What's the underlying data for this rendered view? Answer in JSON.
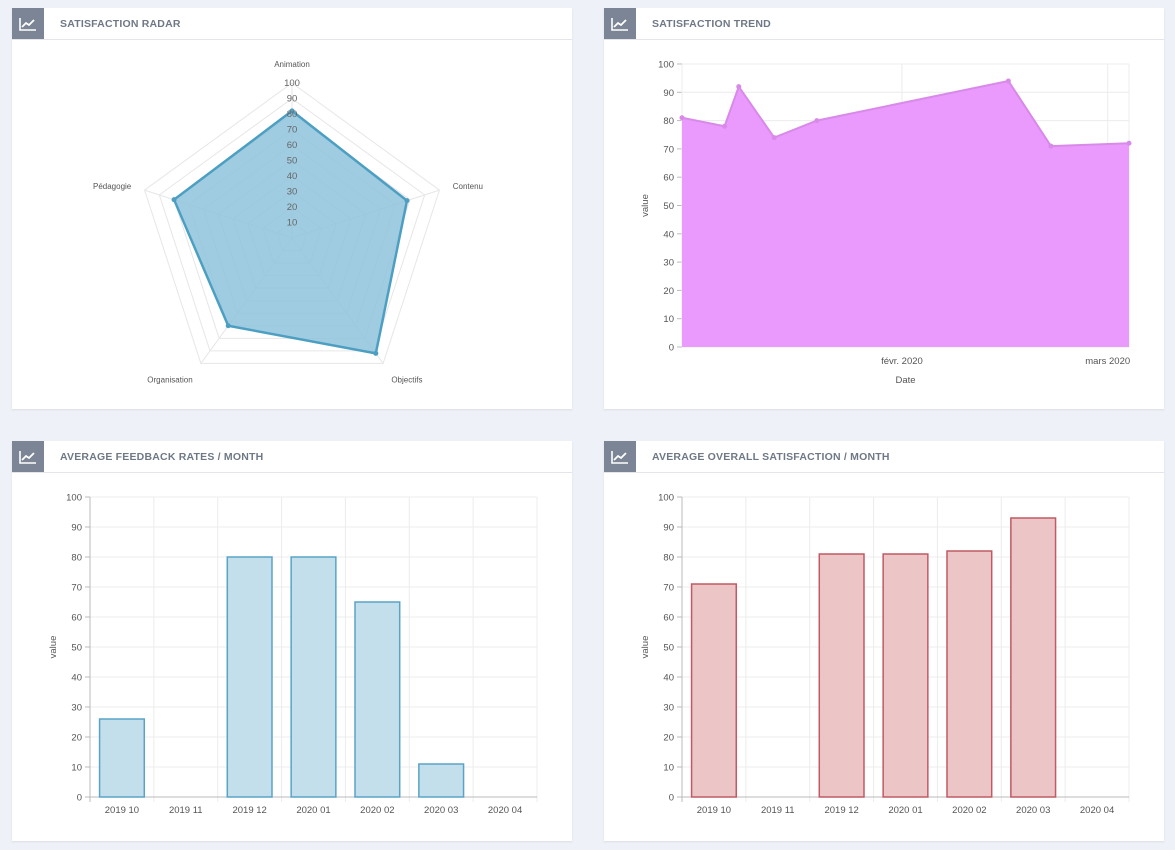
{
  "panels": [
    {
      "id": "radar",
      "title": "SATISFACTION RADAR",
      "icon": "chart-line-icon"
    },
    {
      "id": "trend",
      "title": "SATISFACTION TREND",
      "icon": "chart-line-icon"
    },
    {
      "id": "feedback",
      "title": "AVERAGE FEEDBACK RATES / MONTH",
      "icon": "chart-line-icon"
    },
    {
      "id": "overall",
      "title": "AVERAGE OVERALL SATISFACTION / MONTH",
      "icon": "chart-line-icon"
    }
  ],
  "chart_data": [
    {
      "type": "radar",
      "title": "SATISFACTION RADAR",
      "axes": [
        "Animation",
        "Contenu",
        "Objectifs",
        "Organisation",
        "Pédagogie"
      ],
      "values": [
        82,
        78,
        92,
        70,
        80
      ],
      "rlim": [
        0,
        100
      ],
      "ticks": [
        "10",
        "20",
        "30",
        "40",
        "50",
        "60",
        "70",
        "80",
        "90",
        "100"
      ],
      "color": "#4d9fc2",
      "fill": "#8fc3dd"
    },
    {
      "type": "area",
      "title": "SATISFACTION TREND",
      "xlabel": "Date",
      "ylabel": "value",
      "ylim": [
        0,
        100
      ],
      "yticks": [
        "0",
        "10",
        "20",
        "30",
        "40",
        "50",
        "60",
        "70",
        "80",
        "90",
        "100"
      ],
      "xticks": [
        {
          "label": "févr. 2020",
          "date": "2020-02-01"
        },
        {
          "label": "mars 2020",
          "date": "2020-03-01"
        }
      ],
      "points": [
        {
          "x": "2020-01-01",
          "y": 81
        },
        {
          "x": "2020-01-07",
          "y": 78
        },
        {
          "x": "2020-01-09",
          "y": 92
        },
        {
          "x": "2020-01-14",
          "y": 74
        },
        {
          "x": "2020-01-20",
          "y": 80
        },
        {
          "x": "2020-02-16",
          "y": 94
        },
        {
          "x": "2020-02-22",
          "y": 71
        },
        {
          "x": "2020-03-04",
          "y": 72
        }
      ],
      "xrange": [
        "2020-01-01",
        "2020-03-04"
      ],
      "fill": "#e99afc",
      "line": "#d88ae8"
    },
    {
      "type": "bar",
      "title": "AVERAGE FEEDBACK RATES / MONTH",
      "ylabel": "value",
      "ylim": [
        0,
        100
      ],
      "yticks": [
        "0",
        "10",
        "20",
        "30",
        "40",
        "50",
        "60",
        "70",
        "80",
        "90",
        "100"
      ],
      "categories": [
        "2019 10",
        "2019 11",
        "2019 12",
        "2020 01",
        "2020 02",
        "2020 03",
        "2020 04"
      ],
      "values": [
        26,
        0,
        80,
        80,
        65,
        11,
        0
      ],
      "fill": "#c4dfec",
      "stroke": "#5aa3c6"
    },
    {
      "type": "bar",
      "title": "AVERAGE OVERALL SATISFACTION / MONTH",
      "ylabel": "value",
      "ylim": [
        0,
        100
      ],
      "yticks": [
        "0",
        "10",
        "20",
        "30",
        "40",
        "50",
        "60",
        "70",
        "80",
        "90",
        "100"
      ],
      "categories": [
        "2019 10",
        "2019 11",
        "2019 12",
        "2020 01",
        "2020 02",
        "2020 03",
        "2020 04"
      ],
      "values": [
        71,
        0,
        81,
        81,
        82,
        93,
        0
      ],
      "fill": "#ecc5c7",
      "stroke": "#c05a63"
    }
  ]
}
